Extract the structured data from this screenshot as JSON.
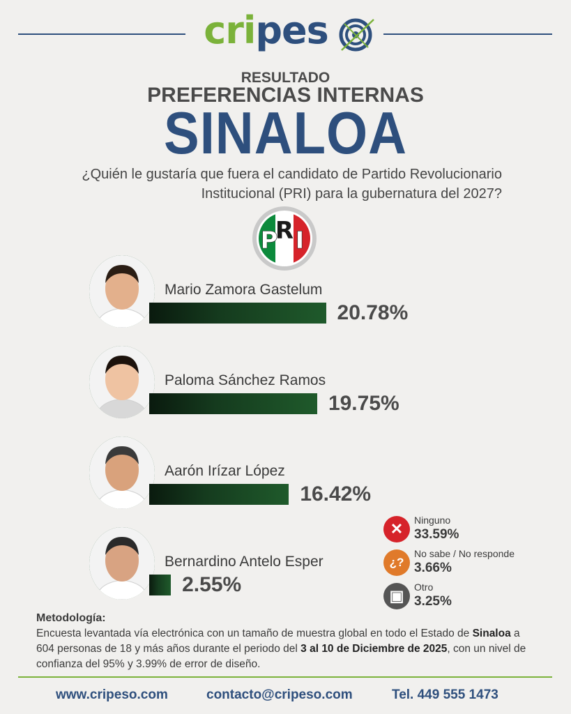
{
  "brand": {
    "part1": "cri",
    "part2": "pes",
    "target_icon": "crosshair-target-icon",
    "green": "#7bb23a",
    "blue": "#2e4f7d"
  },
  "header": {
    "kicker": "RESULTADO",
    "subtitle": "PREFERENCIAS INTERNAS",
    "title": "SINALOA",
    "question_line1": "¿Quién le gustaría que fuera el candidato de Partido Revolucionario",
    "question_line2": "Institucional (PRI) para la gubernatura del 2027?"
  },
  "party_logo": {
    "letters": [
      "P",
      "R",
      "I"
    ],
    "colors": [
      "#0c8a3c",
      "#ffffff",
      "#d6232a"
    ]
  },
  "chart_data": {
    "type": "bar",
    "title": "SINALOA",
    "categories": [
      "Mario Zamora Gastelum",
      "Paloma Sánchez Ramos",
      "Aarón Irízar López",
      "Bernardino Antelo Esper"
    ],
    "values": [
      20.78,
      19.75,
      16.42,
      2.55
    ],
    "value_labels": [
      "20.78%",
      "19.75%",
      "16.42%",
      "2.55%"
    ],
    "bar_color": "#1f5a2b",
    "orientation": "horizontal",
    "other_responses": [
      {
        "label": "Ninguno",
        "value": 33.59,
        "value_label": "33.59%",
        "icon": "x-mark-icon",
        "color": "#d6232a"
      },
      {
        "label": "No sabe / No responde",
        "value": 3.66,
        "value_label": "3.66%",
        "icon": "question-mark-icon",
        "color": "#e07a2a"
      },
      {
        "label": "Otro",
        "value": 3.25,
        "value_label": "3.25%",
        "icon": "ballot-box-icon",
        "color": "#555555"
      }
    ]
  },
  "methodology": {
    "title": "Metodología:",
    "text_1": "Encuesta levantada vía electrónica con un tamaño de muestra global en todo el Estado de ",
    "bold_1": "Sinaloa",
    "text_2": " a 604 personas de 18 y más años durante el periodo del ",
    "bold_2": "3 al 10 de Diciembre de 2025",
    "text_3": ", con un nivel de confianza del 95% y 3.99% de error de diseño."
  },
  "footer": {
    "website": "www.cripeso.com",
    "email": "contacto@cripeso.com",
    "phone": "Tel. 449 555 1473"
  }
}
